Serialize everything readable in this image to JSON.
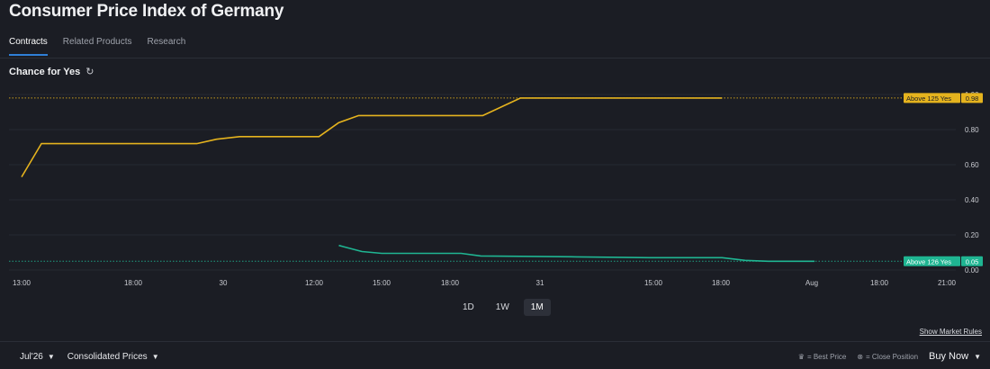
{
  "page": {
    "title": "Consumer Price Index of Germany",
    "tabs": [
      "Contracts",
      "Related Products",
      "Research"
    ],
    "chance_label": "Chance for Yes",
    "ranges": [
      "1D",
      "1W",
      "1M"
    ],
    "active_range": "1M",
    "show_rules": "Show Market Rules",
    "month_select": "Jul'26",
    "price_select": "Consolidated Prices",
    "best_price": "= Best Price",
    "close_position": "= Close Position",
    "buy_now": "Buy Now"
  },
  "chart_data": {
    "type": "line",
    "ylim": [
      0,
      1
    ],
    "yticks": [
      "0.00",
      "0.20",
      "0.40",
      "0.60",
      "0.80",
      "1.00"
    ],
    "x_range": [
      0,
      14
    ],
    "xticks": [
      {
        "label": "13:00",
        "x": 0
      },
      {
        "label": "18:00",
        "x": 1
      },
      {
        "label": "30",
        "x": 2
      },
      {
        "label": "12:00",
        "x": 3
      },
      {
        "label": "15:00",
        "x": 4
      },
      {
        "label": "18:00",
        "x": 5
      },
      {
        "label": "31",
        "x": 6
      },
      {
        "label": "15:00",
        "x": 7
      },
      {
        "label": "18:00",
        "x": 8
      },
      {
        "label": "Aug",
        "x": 9
      },
      {
        "label": "18:00",
        "x": 10
      },
      {
        "label": "21:00",
        "x": 11
      }
    ],
    "series": [
      {
        "name": "Above 125 Yes",
        "color": "#e5b31e",
        "last": "0.98",
        "points": [
          [
            0,
            0.53
          ],
          [
            0.3,
            0.72
          ],
          [
            2.65,
            0.72
          ],
          [
            2.95,
            0.745
          ],
          [
            3.3,
            0.76
          ],
          [
            4.5,
            0.76
          ],
          [
            4.8,
            0.84
          ],
          [
            5.1,
            0.88
          ],
          [
            6.98,
            0.88
          ],
          [
            7.55,
            0.98
          ],
          [
            10.6,
            0.98
          ]
        ]
      },
      {
        "name": "Above 126 Yes",
        "color": "#1fb592",
        "last": "0.05",
        "points": [
          [
            4.8,
            0.14
          ],
          [
            5.15,
            0.105
          ],
          [
            5.45,
            0.095
          ],
          [
            6.65,
            0.095
          ],
          [
            6.95,
            0.08
          ],
          [
            8.4,
            0.075
          ],
          [
            9.5,
            0.07
          ],
          [
            10.6,
            0.07
          ],
          [
            10.95,
            0.055
          ],
          [
            11.3,
            0.05
          ],
          [
            12.0,
            0.05
          ]
        ]
      }
    ]
  }
}
